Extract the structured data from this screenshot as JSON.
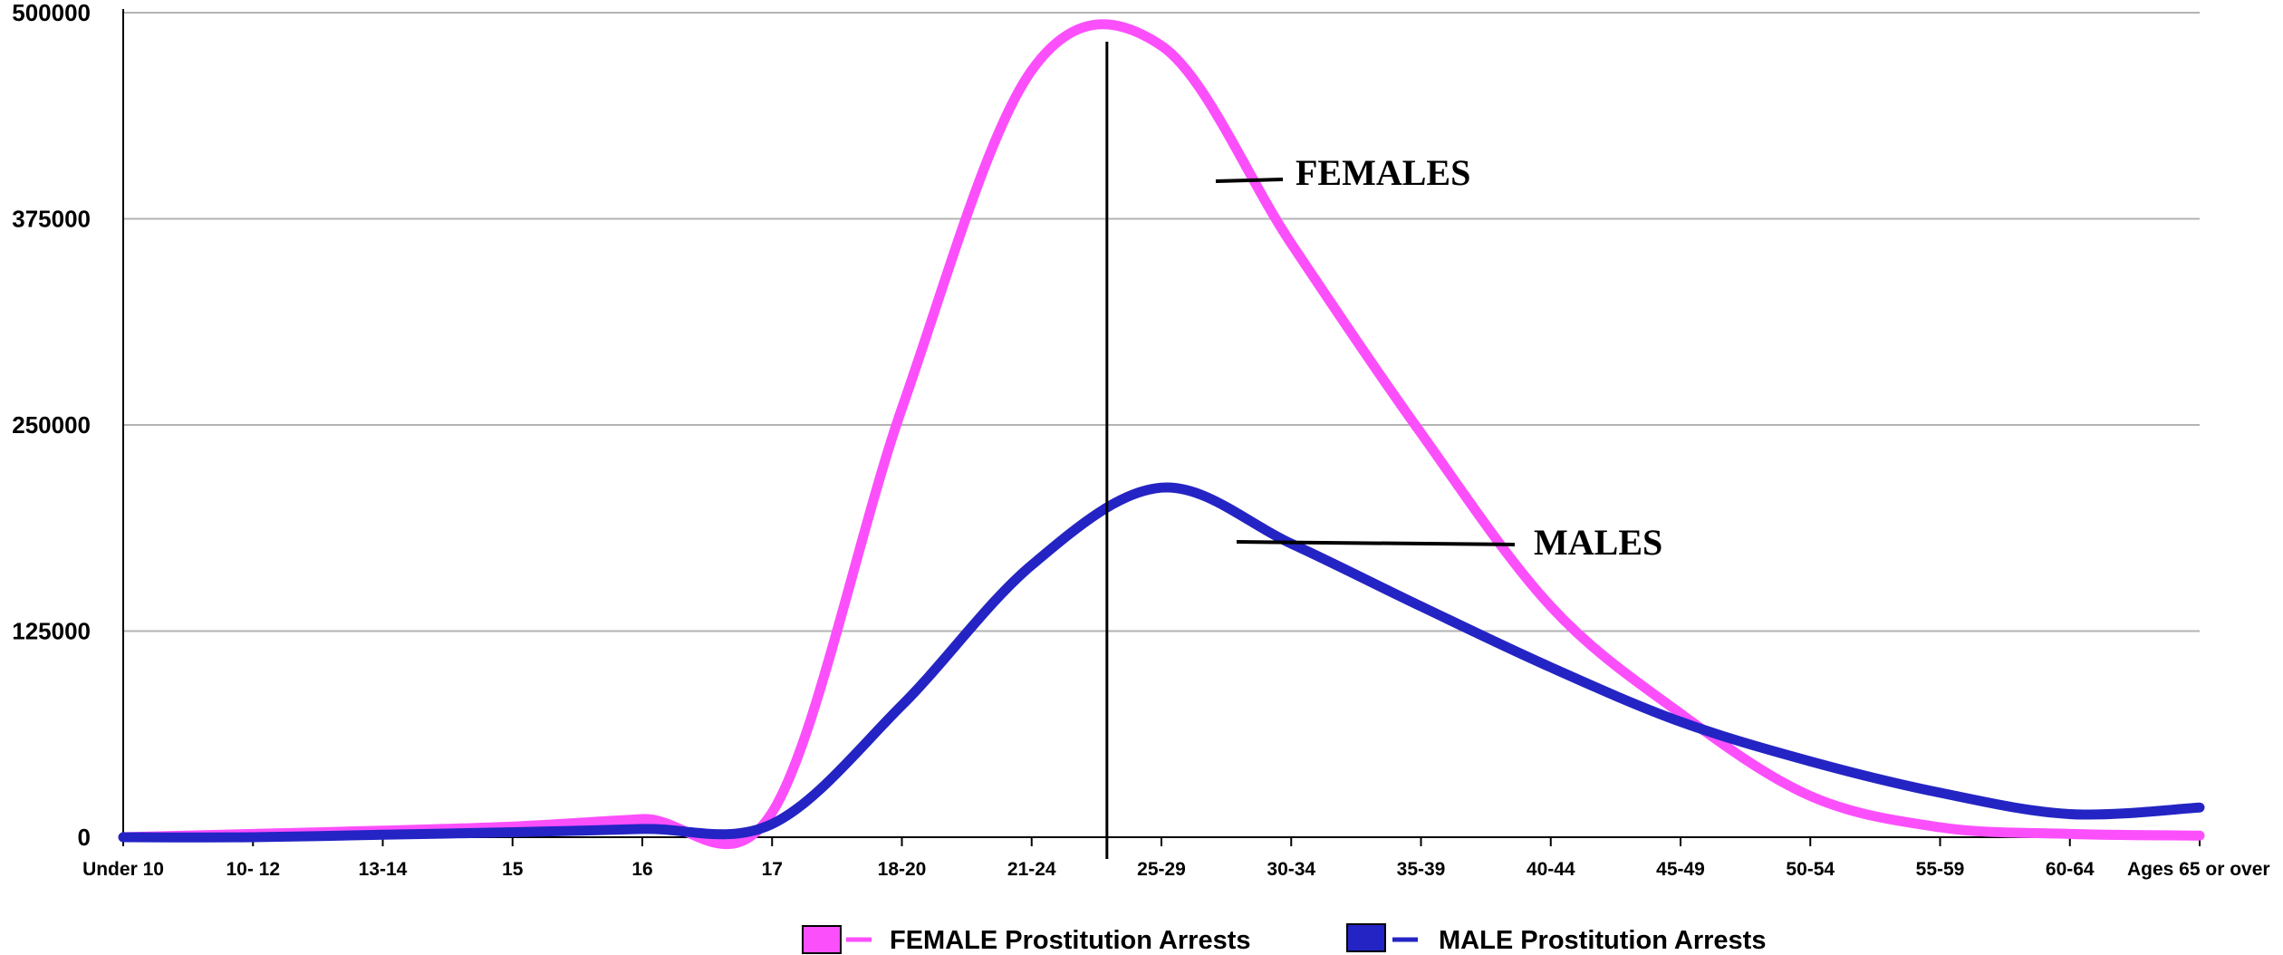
{
  "chart_data": {
    "type": "line",
    "title": "",
    "xlabel": "",
    "ylabel": "",
    "categories": [
      "Under 10",
      "10- 12",
      "13-14",
      "15",
      "16",
      "17",
      "18-20",
      "21-24",
      "25-29",
      "30-34",
      "35-39",
      "40-44",
      "45-49",
      "50-54",
      "55-59",
      "60-64",
      "Ages 65 or over"
    ],
    "ylim": [
      0,
      500000
    ],
    "yticks": [
      0,
      125000,
      250000,
      375000,
      500000
    ],
    "ytick_labels": [
      "0",
      "125000",
      "250000",
      "375000",
      "500000"
    ],
    "grid": true,
    "legend_position": "bottom",
    "series": [
      {
        "name": "FEMALE Prostitution Arrests",
        "color": "#fc4ffc",
        "values": [
          0,
          2000,
          4000,
          6500,
          11000,
          15000,
          260000,
          465000,
          480000,
          360000,
          245000,
          140000,
          75000,
          25000,
          6000,
          2000,
          1000
        ]
      },
      {
        "name": "MALE Prostitution Arrests",
        "color": "#2424c4",
        "values": [
          0,
          0,
          1500,
          3000,
          5000,
          8000,
          80000,
          165000,
          212000,
          178000,
          140000,
          103000,
          70000,
          46000,
          27000,
          14000,
          18000
        ]
      }
    ],
    "annotations": [
      {
        "text": "FEMALES",
        "series": "FEMALE Prostitution Arrests"
      },
      {
        "text": "MALES",
        "series": "MALE Prostitution Arrests"
      }
    ],
    "reference_line": {
      "between": [
        "21-24",
        "25-29"
      ]
    }
  },
  "legend": {
    "female_label": "FEMALE Prostitution Arrests",
    "male_label": "MALE Prostitution Arrests"
  },
  "annotations": {
    "females": "FEMALES",
    "males": "MALES"
  }
}
